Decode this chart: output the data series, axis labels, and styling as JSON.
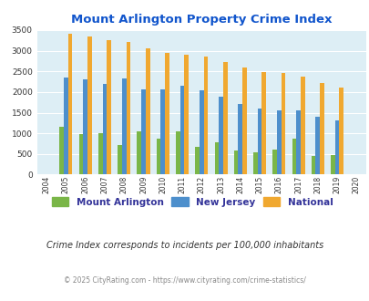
{
  "title": "Mount Arlington Property Crime Index",
  "all_years": [
    2004,
    2005,
    2006,
    2007,
    2008,
    2009,
    2010,
    2011,
    2012,
    2013,
    2014,
    2015,
    2016,
    2017,
    2018,
    2019,
    2020
  ],
  "bar_years": [
    2005,
    2006,
    2007,
    2008,
    2009,
    2010,
    2011,
    2012,
    2013,
    2014,
    2015,
    2016,
    2017,
    2018,
    2019
  ],
  "mount_arlington": [
    1150,
    990,
    1000,
    720,
    1040,
    880,
    1040,
    670,
    780,
    590,
    540,
    610,
    880,
    450,
    470
  ],
  "new_jersey": [
    2360,
    2310,
    2200,
    2320,
    2060,
    2060,
    2150,
    2050,
    1890,
    1720,
    1610,
    1550,
    1550,
    1400,
    1310
  ],
  "national": [
    3420,
    3340,
    3250,
    3210,
    3050,
    2950,
    2910,
    2860,
    2730,
    2590,
    2490,
    2470,
    2380,
    2210,
    2100
  ],
  "mount_arlington_color": "#7ab648",
  "new_jersey_color": "#4d8fcc",
  "national_color": "#f0a830",
  "bg_color": "#ddeef5",
  "title_color": "#1155cc",
  "ylim": [
    0,
    3500
  ],
  "yticks": [
    0,
    500,
    1000,
    1500,
    2000,
    2500,
    3000,
    3500
  ],
  "subtitle": "Crime Index corresponds to incidents per 100,000 inhabitants",
  "footer": "© 2025 CityRating.com - https://www.cityrating.com/crime-statistics/",
  "legend_labels": [
    "Mount Arlington",
    "New Jersey",
    "National"
  ]
}
